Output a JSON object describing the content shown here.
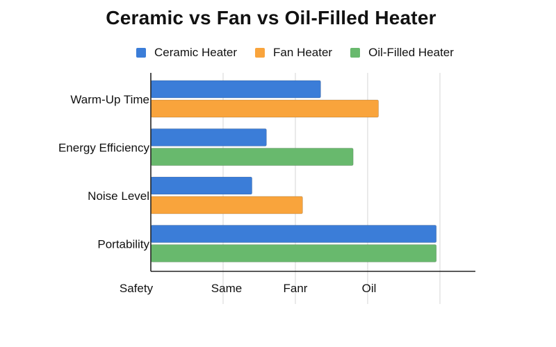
{
  "chart_data": {
    "type": "bar",
    "orientation": "horizontal",
    "title": "Ceramic vs Fan vs Oil-Filled Heater",
    "categories": [
      "Warm-Up Time",
      "Energy Efficiency",
      "Noise Level",
      "Portability"
    ],
    "x_tick_labels": [
      "Safety",
      "Same",
      "Fanr",
      "Oil"
    ],
    "x_ticks": [
      0,
      1,
      2,
      3
    ],
    "xlim": [
      0,
      4.5
    ],
    "grid": true,
    "legend": "top",
    "series": [
      {
        "name": "Ceramic Heater",
        "color": "#3b7dd8"
      },
      {
        "name": "Fan Heater",
        "color": "#f9a43c"
      },
      {
        "name": "Oil-Filled Heater",
        "color": "#68b96d"
      }
    ],
    "bars": [
      {
        "category": "Warm-Up Time",
        "series": "Ceramic Heater",
        "value": 2.35
      },
      {
        "category": "Warm-Up Time",
        "series": "Fan Heater",
        "value": 3.15
      },
      {
        "category": "Energy Efficiency",
        "series": "Ceramic Heater",
        "value": 1.6
      },
      {
        "category": "Energy Efficiency",
        "series": "Oil-Filled Heater",
        "value": 2.8
      },
      {
        "category": "Noise Level",
        "series": "Ceramic Heater",
        "value": 1.4
      },
      {
        "category": "Noise Level",
        "series": "Fan Heater",
        "value": 2.1
      },
      {
        "category": "Portability",
        "series": "Ceramic Heater",
        "value": 3.95
      },
      {
        "category": "Portability",
        "series": "Oil-Filled Heater",
        "value": 3.95
      }
    ]
  }
}
